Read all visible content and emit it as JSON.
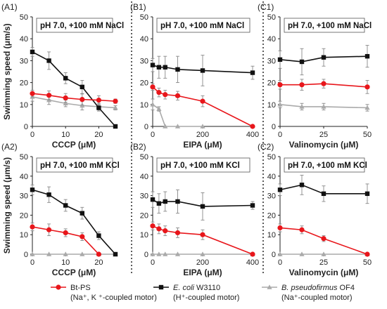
{
  "figure": {
    "ylabel": "Swimming speed  (μm/s)",
    "colors": {
      "bt": "#e8161b",
      "ecoli": "#111111",
      "bpseudo": "#aaaaaa",
      "axis": "#222222",
      "divider": "#333333"
    }
  },
  "legend": [
    {
      "key": "bt",
      "name": "Bt-PS",
      "sub": "(Na⁺, K ⁺-coupled motor)",
      "marker": "circle"
    },
    {
      "key": "ecoli",
      "name_italic": "E. coli",
      "name_rest": " W3110",
      "sub": "(H⁺-coupled motor)",
      "marker": "square"
    },
    {
      "key": "bpseudo",
      "name_italic": "B. pseudofirmus",
      "name_rest": " OF4",
      "sub": "(Na⁺-coupled motor)",
      "marker": "triangle"
    }
  ],
  "chart_data": [
    {
      "type": "line",
      "panel": "(A1)",
      "title": "pH 7.0, +100 mM NaCl",
      "xlabel": "CCCP (μM)",
      "ylabel": "Swimming speed  (μm/s)",
      "xlim": [
        0,
        25
      ],
      "xticks": [
        0,
        10,
        20
      ],
      "ylim": [
        0,
        50
      ],
      "yticks": [
        0,
        10,
        20,
        30,
        40,
        50
      ],
      "grid": false,
      "series": [
        {
          "key": "bt",
          "x": [
            0,
            5,
            10,
            15,
            20,
            25
          ],
          "y": [
            15,
            14.2,
            13,
            12.3,
            12,
            11.5
          ],
          "err": [
            1.5,
            2,
            2,
            2.5,
            2,
            1
          ]
        },
        {
          "key": "ecoli",
          "x": [
            0,
            5,
            10,
            15,
            20,
            25
          ],
          "y": [
            34,
            30,
            22,
            18,
            8.5,
            0
          ],
          "err": [
            2,
            4,
            2.5,
            3,
            1.5,
            0
          ]
        },
        {
          "key": "bpseudo",
          "x": [
            0,
            5,
            10,
            15,
            20,
            25
          ],
          "y": [
            13.5,
            12,
            10.5,
            9.5,
            9,
            8.5
          ],
          "err": [
            2,
            2,
            1.5,
            2,
            1.5,
            1
          ]
        }
      ]
    },
    {
      "type": "line",
      "panel": "(B1)",
      "title": "pH 7.0, +100 mM NaCl",
      "xlabel": "EIPA (μM)",
      "ylabel": "",
      "xlim": [
        0,
        400
      ],
      "xticks": [
        0,
        200,
        400
      ],
      "ylim": [
        0,
        50
      ],
      "yticks": [
        0,
        10,
        20,
        30,
        40,
        50
      ],
      "grid": false,
      "series": [
        {
          "key": "bt",
          "x": [
            0,
            25,
            50,
            100,
            200,
            400
          ],
          "y": [
            18,
            15.5,
            14.5,
            14,
            11.5,
            0
          ],
          "err": [
            1.5,
            2,
            2,
            2,
            2.5,
            0
          ]
        },
        {
          "key": "ecoli",
          "x": [
            0,
            25,
            50,
            100,
            200,
            400
          ],
          "y": [
            28,
            27,
            27,
            26,
            25.5,
            24.5
          ],
          "err": [
            3,
            5,
            5,
            6,
            7,
            3
          ]
        },
        {
          "key": "bpseudo",
          "x": [
            0,
            25,
            50,
            100,
            200
          ],
          "y": [
            10,
            8,
            0,
            0,
            0
          ],
          "err": [
            2.5,
            1,
            0,
            0,
            0
          ]
        }
      ]
    },
    {
      "type": "line",
      "panel": "(C1)",
      "title": "pH 7.0, +100 mM NaCl",
      "xlabel": "Valinomycin (μM)",
      "ylabel": "",
      "xlim": [
        0,
        50
      ],
      "xticks": [
        0,
        25,
        50
      ],
      "ylim": [
        0,
        50
      ],
      "yticks": [
        0,
        10,
        20,
        30,
        40,
        50
      ],
      "grid": false,
      "series": [
        {
          "key": "bt",
          "x": [
            0,
            12.5,
            25,
            50
          ],
          "y": [
            19,
            19,
            19.5,
            18
          ],
          "err": [
            2,
            2.5,
            2,
            3
          ]
        },
        {
          "key": "ecoli",
          "x": [
            0,
            12.5,
            25,
            50
          ],
          "y": [
            30.5,
            29.5,
            31.5,
            32
          ],
          "err": [
            4,
            6,
            4,
            5
          ]
        },
        {
          "key": "bpseudo",
          "x": [
            0,
            12.5,
            25,
            50
          ],
          "y": [
            10,
            9,
            9,
            8.5
          ],
          "err": [
            1.5,
            1.5,
            1.5,
            1.5
          ]
        }
      ]
    },
    {
      "type": "line",
      "panel": "(A2)",
      "title": "pH 7.0, +100 mM KCl",
      "xlabel": "CCCP (μM)",
      "ylabel": "Swimming speed  (μm/s)",
      "xlim": [
        0,
        25
      ],
      "xticks": [
        0,
        10,
        20
      ],
      "ylim": [
        0,
        50
      ],
      "yticks": [
        0,
        10,
        20,
        30,
        40,
        50
      ],
      "grid": false,
      "series": [
        {
          "key": "bt",
          "x": [
            0,
            5,
            10,
            15,
            20
          ],
          "y": [
            14,
            12.5,
            11,
            9,
            0
          ],
          "err": [
            2,
            3,
            2,
            2,
            0
          ]
        },
        {
          "key": "ecoli",
          "x": [
            0,
            5,
            10,
            15,
            20,
            25
          ],
          "y": [
            33,
            30.5,
            25,
            21,
            9.5,
            0
          ],
          "err": [
            2.5,
            4,
            3,
            3,
            2,
            0
          ]
        },
        {
          "key": "bpseudo",
          "x": [
            0,
            5,
            10,
            15,
            20,
            25
          ],
          "y": [
            0,
            0,
            0,
            0,
            0,
            0
          ],
          "err": [
            0,
            0,
            0,
            0,
            0,
            0
          ]
        }
      ]
    },
    {
      "type": "line",
      "panel": "(B2)",
      "title": "pH 7.0, +100 mM KCl",
      "xlabel": "EIPA (μM)",
      "ylabel": "",
      "xlim": [
        0,
        400
      ],
      "xticks": [
        0,
        200,
        400
      ],
      "ylim": [
        0,
        50
      ],
      "yticks": [
        0,
        10,
        20,
        30,
        40,
        50
      ],
      "grid": false,
      "series": [
        {
          "key": "bt",
          "x": [
            0,
            25,
            50,
            100,
            200,
            400
          ],
          "y": [
            14.5,
            13,
            12,
            11,
            10,
            0
          ],
          "err": [
            2,
            2.5,
            2.5,
            2.5,
            2.5,
            0
          ]
        },
        {
          "key": "ecoli",
          "x": [
            0,
            25,
            50,
            100,
            200,
            400
          ],
          "y": [
            28,
            26,
            27,
            27,
            24.5,
            25
          ],
          "err": [
            4,
            5,
            5,
            6,
            7,
            2
          ]
        },
        {
          "key": "bpseudo",
          "x": [
            0,
            25,
            50,
            100,
            200,
            400
          ],
          "y": [
            0,
            0,
            0,
            0,
            0,
            0
          ],
          "err": [
            0,
            0,
            0,
            0,
            0,
            0
          ]
        }
      ]
    },
    {
      "type": "line",
      "panel": "(C2)",
      "title": "pH 7.0, +100 mM KCl",
      "xlabel": "Valinomycin (μM)",
      "ylabel": "",
      "xlim": [
        0,
        50
      ],
      "xticks": [
        0,
        25,
        50
      ],
      "ylim": [
        0,
        50
      ],
      "yticks": [
        0,
        10,
        20,
        30,
        40,
        50
      ],
      "grid": false,
      "series": [
        {
          "key": "bt",
          "x": [
            0,
            12.5,
            25,
            50
          ],
          "y": [
            13.5,
            12.5,
            8,
            0
          ],
          "err": [
            2,
            2,
            1.5,
            0
          ]
        },
        {
          "key": "ecoli",
          "x": [
            0,
            12.5,
            25,
            50
          ],
          "y": [
            33,
            35.5,
            31,
            31
          ],
          "err": [
            3,
            5,
            4,
            5
          ]
        },
        {
          "key": "bpseudo",
          "x": [
            0,
            12.5,
            25,
            50
          ],
          "y": [
            0,
            0,
            0,
            0
          ],
          "err": [
            0,
            0,
            0,
            0
          ]
        }
      ]
    }
  ]
}
